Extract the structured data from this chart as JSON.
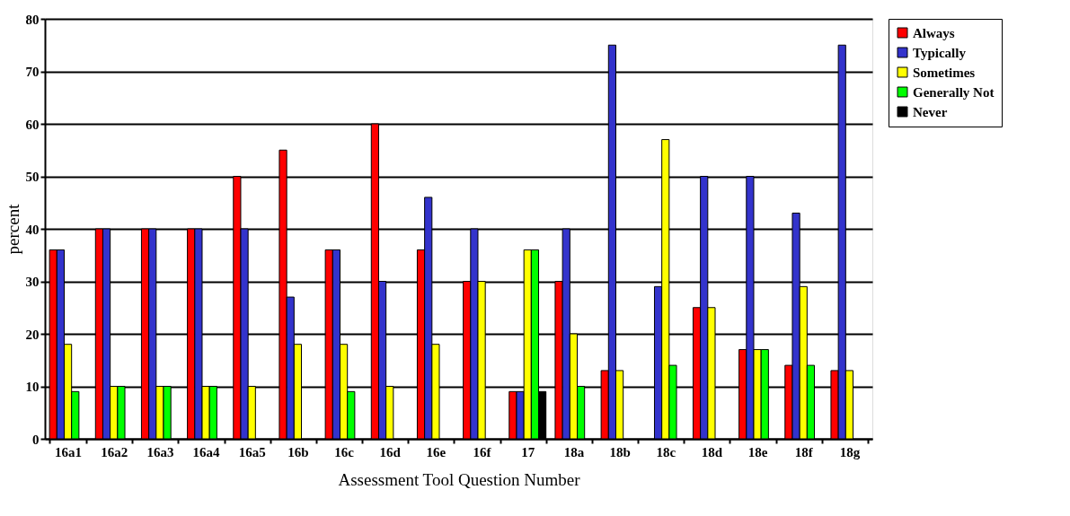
{
  "chart_data": {
    "type": "bar",
    "xlabel": "Assessment Tool Question Number",
    "ylabel": "percent",
    "categories": [
      "16a1",
      "16a2",
      "16a3",
      "16a4",
      "16a5",
      "16b",
      "16c",
      "16d",
      "16e",
      "16f",
      "17",
      "18a",
      "18b",
      "18c",
      "18d",
      "18e",
      "18f",
      "18g"
    ],
    "series": [
      {
        "name": "Always",
        "color": "#ff0000",
        "values": [
          36,
          40,
          40,
          40,
          50,
          55,
          36,
          60,
          36,
          30,
          9,
          30,
          13,
          null,
          25,
          17,
          14,
          13
        ]
      },
      {
        "name": "Typically",
        "color": "#3333cc",
        "values": [
          36,
          40,
          40,
          40,
          40,
          27,
          36,
          30,
          46,
          40,
          9,
          40,
          75,
          29,
          50,
          50,
          43,
          75
        ]
      },
      {
        "name": "Sometimes",
        "color": "#ffff00",
        "values": [
          18,
          10,
          10,
          10,
          10,
          18,
          18,
          10,
          18,
          30,
          36,
          20,
          13,
          57,
          25,
          17,
          29,
          13
        ]
      },
      {
        "name": "Generally Not",
        "color": "#00ff00",
        "values": [
          9,
          10,
          10,
          10,
          null,
          null,
          9,
          null,
          null,
          null,
          36,
          10,
          null,
          14,
          null,
          17,
          14,
          null
        ]
      },
      {
        "name": "Never",
        "color": "#000000",
        "values": [
          null,
          null,
          null,
          null,
          null,
          null,
          null,
          null,
          null,
          null,
          9,
          null,
          null,
          null,
          null,
          null,
          null,
          null
        ]
      }
    ],
    "ylim": [
      0,
      80
    ],
    "yticks": [
      0,
      10,
      20,
      30,
      40,
      50,
      60,
      70,
      80
    ],
    "grid": "y",
    "legend": "right"
  }
}
